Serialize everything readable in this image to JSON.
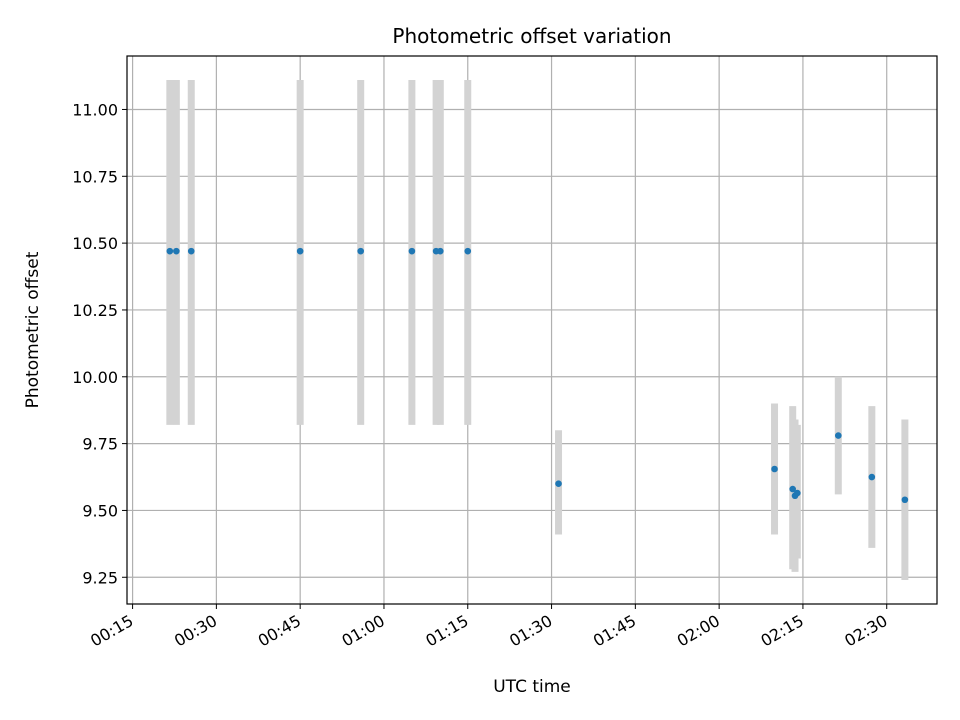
{
  "chart_data": {
    "type": "scatter",
    "title": "Photometric offset variation",
    "xlabel": "UTC time",
    "ylabel": "Photometric offset",
    "x_axis_type": "time",
    "xlim": [
      "00:14",
      "02:39"
    ],
    "ylim": [
      9.15,
      11.2
    ],
    "grid": true,
    "x_ticks": [
      "00:15",
      "00:30",
      "00:45",
      "01:00",
      "01:15",
      "01:30",
      "01:45",
      "02:00",
      "02:15",
      "02:30"
    ],
    "y_ticks": [
      "9.25",
      "9.50",
      "9.75",
      "10.00",
      "10.25",
      "10.50",
      "10.75",
      "11.00"
    ],
    "marker_color": "#1f77b4",
    "errorbar_color": "#d3d3d3",
    "points": [
      {
        "t": "00:21:40",
        "y": 10.47,
        "lo": 9.82,
        "hi": 11.11
      },
      {
        "t": "00:22:50",
        "y": 10.47,
        "lo": 9.82,
        "hi": 11.11
      },
      {
        "t": "00:25:30",
        "y": 10.47,
        "lo": 9.82,
        "hi": 11.11
      },
      {
        "t": "00:45:00",
        "y": 10.47,
        "lo": 9.82,
        "hi": 11.11
      },
      {
        "t": "00:55:50",
        "y": 10.47,
        "lo": 9.82,
        "hi": 11.11
      },
      {
        "t": "01:05:00",
        "y": 10.47,
        "lo": 9.82,
        "hi": 11.11
      },
      {
        "t": "01:09:20",
        "y": 10.47,
        "lo": 9.82,
        "hi": 11.11
      },
      {
        "t": "01:10:05",
        "y": 10.47,
        "lo": 9.82,
        "hi": 11.11
      },
      {
        "t": "01:15:00",
        "y": 10.47,
        "lo": 9.82,
        "hi": 11.11
      },
      {
        "t": "01:31:15",
        "y": 9.6,
        "lo": 9.41,
        "hi": 9.8
      },
      {
        "t": "02:09:55",
        "y": 9.655,
        "lo": 9.41,
        "hi": 9.9
      },
      {
        "t": "02:13:10",
        "y": 9.58,
        "lo": 9.28,
        "hi": 9.89
      },
      {
        "t": "02:13:35",
        "y": 9.555,
        "lo": 9.27,
        "hi": 9.84
      },
      {
        "t": "02:14:00",
        "y": 9.565,
        "lo": 9.32,
        "hi": 9.82
      },
      {
        "t": "02:21:20",
        "y": 9.78,
        "lo": 9.56,
        "hi": 10.0
      },
      {
        "t": "02:27:20",
        "y": 9.625,
        "lo": 9.36,
        "hi": 9.89
      },
      {
        "t": "02:33:15",
        "y": 9.54,
        "lo": 9.24,
        "hi": 9.84
      }
    ]
  }
}
